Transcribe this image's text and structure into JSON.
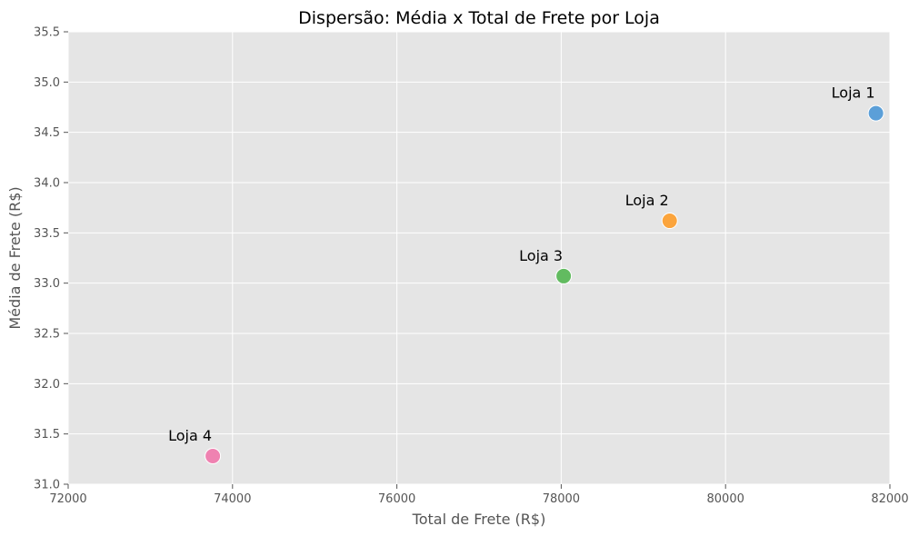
{
  "chart_data": {
    "type": "scatter",
    "title": "Dispersão: Média x Total de Frete por Loja",
    "xlabel": "Total de Frete (R$)",
    "ylabel": "Média de Frete (R$)",
    "xlim": [
      72000,
      82000
    ],
    "ylim": [
      31.0,
      35.5
    ],
    "xticks": [
      "72000",
      "74000",
      "76000",
      "78000",
      "80000",
      "82000"
    ],
    "yticks": [
      "31.0",
      "31.5",
      "32.0",
      "32.5",
      "33.0",
      "33.5",
      "34.0",
      "34.5",
      "35.0",
      "35.5"
    ],
    "grid": true,
    "points": [
      {
        "label": "Loja 1",
        "x": 81830,
        "y": 34.69,
        "color": "#5b9fd8"
      },
      {
        "label": "Loja 2",
        "x": 79320,
        "y": 33.62,
        "color": "#fba43c"
      },
      {
        "label": "Loja 3",
        "x": 78030,
        "y": 33.07,
        "color": "#62bb60"
      },
      {
        "label": "Loja 4",
        "x": 73760,
        "y": 31.28,
        "color": "#ef82b1"
      }
    ]
  },
  "colors": {
    "plot_background": "#e5e5e5",
    "grid": "#ffffff"
  }
}
